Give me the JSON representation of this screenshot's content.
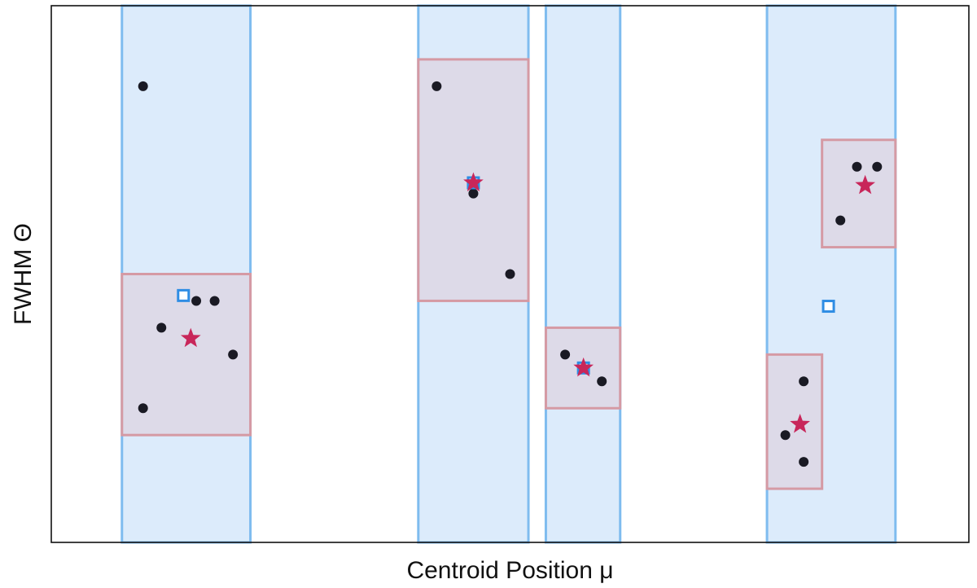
{
  "chart_data": {
    "type": "scatter",
    "xlabel": "Centroid Position μ",
    "ylabel": "FWHM Θ",
    "xlim": [
      0,
      100
    ],
    "ylim": [
      0,
      100
    ],
    "grid": false,
    "ticks": false,
    "colors": {
      "band_fill": "#dcebfb",
      "band_edge": "#7fbcef",
      "box_fill": "#ddd7e4",
      "box_edge": "#d59aa4",
      "point": "#1a1a24",
      "square": "#2f8de4",
      "star": "#c8265a"
    },
    "bands": [
      {
        "x0": 7.7,
        "x1": 21.7
      },
      {
        "x0": 40.0,
        "x1": 52.0
      },
      {
        "x0": 53.9,
        "x1": 62.0
      },
      {
        "x0": 78.0,
        "x1": 92.0
      }
    ],
    "boxes": [
      {
        "x0": 7.7,
        "x1": 21.7,
        "y0": 20.0,
        "y1": 50.0
      },
      {
        "x0": 40.0,
        "x1": 52.0,
        "y0": 45.0,
        "y1": 90.0
      },
      {
        "x0": 53.9,
        "x1": 62.0,
        "y0": 25.0,
        "y1": 40.0
      },
      {
        "x0": 78.0,
        "x1": 84.0,
        "y0": 10.0,
        "y1": 35.0
      },
      {
        "x0": 84.0,
        "x1": 92.0,
        "y0": 55.0,
        "y1": 75.0
      }
    ],
    "points": [
      {
        "x": 10.0,
        "y": 85.0
      },
      {
        "x": 15.8,
        "y": 45.0
      },
      {
        "x": 17.8,
        "y": 45.0
      },
      {
        "x": 12.0,
        "y": 40.0
      },
      {
        "x": 19.8,
        "y": 35.0
      },
      {
        "x": 10.0,
        "y": 25.0
      },
      {
        "x": 42.0,
        "x_note": "",
        "y": 85.0
      },
      {
        "x": 46.0,
        "y": 65.0
      },
      {
        "x": 50.0,
        "y": 50.0
      },
      {
        "x": 56.0,
        "y": 35.0
      },
      {
        "x": 60.0,
        "y": 30.0
      },
      {
        "x": 87.8,
        "y": 70.0
      },
      {
        "x": 90.0,
        "y": 70.0
      },
      {
        "x": 86.0,
        "y": 60.0
      },
      {
        "x": 82.0,
        "y": 30.0
      },
      {
        "x": 80.0,
        "y": 20.0
      },
      {
        "x": 82.0,
        "y": 15.0
      }
    ],
    "squares": [
      {
        "x": 14.4,
        "y": 46.0
      },
      {
        "x": 46.0,
        "y": 67.0
      },
      {
        "x": 58.0,
        "y": 32.5
      },
      {
        "x": 84.7,
        "y": 44.0
      }
    ],
    "stars": [
      {
        "x": 15.2,
        "y": 38.0
      },
      {
        "x": 46.0,
        "y": 67.0
      },
      {
        "x": 58.0,
        "y": 32.5
      },
      {
        "x": 81.6,
        "y": 22.0
      },
      {
        "x": 88.7,
        "y": 66.5
      }
    ]
  }
}
